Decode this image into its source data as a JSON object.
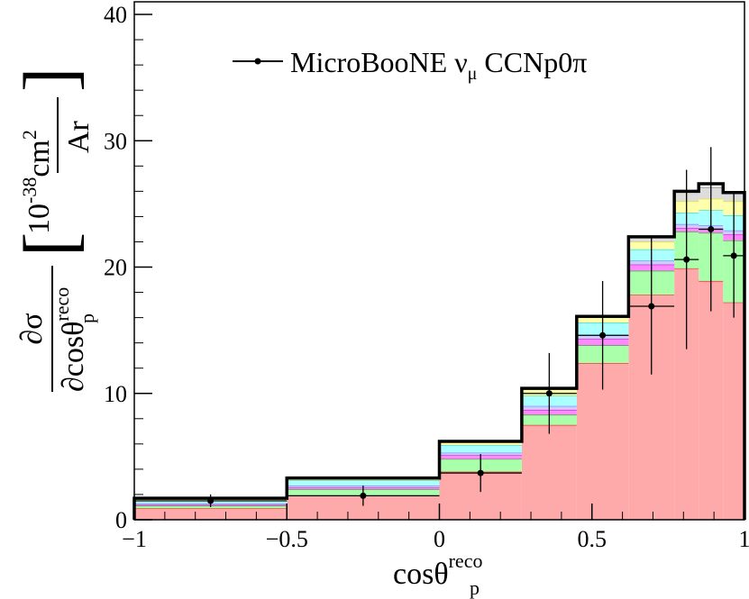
{
  "chart_data": {
    "type": "bar",
    "subtype": "stacked-histogram-with-data-points",
    "xlabel": "cosθ",
    "xlabel_sup": "reco",
    "xlabel_sub": "p",
    "ylabel": "∂σ / ∂cosθ_p^reco [10^-38 cm² / Ar]",
    "ylabel_parts": {
      "num": "∂σ",
      "den": "∂cosθ",
      "den_sup": "reco",
      "den_sub": "p",
      "unit_pre": "10",
      "unit_exp": "-38",
      "unit_num": "cm",
      "unit_num_exp": "2",
      "unit_den": "Ar",
      "bracket_open": "[",
      "bracket_close": "]"
    },
    "xlim": [
      -1,
      1
    ],
    "ylim": [
      0,
      41
    ],
    "x_ticks": [
      {
        "value": -1,
        "label": "−1"
      },
      {
        "value": -0.5,
        "label": "−0.5"
      },
      {
        "value": 0,
        "label": "0"
      },
      {
        "value": 0.5,
        "label": "0.5"
      },
      {
        "value": 1,
        "label": "1"
      }
    ],
    "y_ticks": [
      {
        "value": 0,
        "label": "0"
      },
      {
        "value": 10,
        "label": "10"
      },
      {
        "value": 20,
        "label": "20"
      },
      {
        "value": 30,
        "label": "30"
      },
      {
        "value": 40,
        "label": "40"
      }
    ],
    "bin_edges": [
      -1,
      -0.5,
      0,
      0.27,
      0.45,
      0.62,
      0.77,
      0.85,
      0.93,
      1.0
    ],
    "stack_series": [
      {
        "color": "#ffaaaa",
        "edge": "#ff0000",
        "values": [
          0.9,
          1.9,
          3.8,
          7.5,
          12.4,
          17.8,
          19.9,
          18.9,
          17.2
        ]
      },
      {
        "color": "#aaffaa",
        "edge": "#00aa00",
        "values": [
          0.2,
          0.5,
          1.0,
          0.8,
          1.4,
          1.9,
          2.9,
          3.8,
          4.9
        ]
      },
      {
        "color": "#ff88ff",
        "edge": "#cc00cc",
        "values": [
          0.1,
          0.15,
          0.3,
          0.4,
          0.5,
          0.5,
          0.3,
          0.3,
          0.5
        ]
      },
      {
        "color": "#ccccff",
        "edge": "#6666ff",
        "values": [
          0.1,
          0.15,
          0.2,
          0.3,
          0.3,
          0.3,
          0.3,
          0.3,
          0.3
        ]
      },
      {
        "color": "#aaffff",
        "edge": "#00cccc",
        "values": [
          0.2,
          0.4,
          0.6,
          0.8,
          1.0,
          0.9,
          0.9,
          1.2,
          1.2
        ]
      },
      {
        "color": "#ffffaa",
        "edge": "#dddd00",
        "values": [
          0.2,
          0.3,
          0.3,
          0.5,
          0.4,
          0.6,
          0.9,
          0.9,
          1.1
        ]
      },
      {
        "color": "#dddddd",
        "edge": "#999999",
        "values": [
          0.0,
          0.0,
          0.0,
          0.0,
          0.1,
          0.4,
          0.8,
          0.9,
          0.7
        ]
      }
    ],
    "total_values": [
      1.7,
      3.3,
      6.2,
      10.4,
      16.1,
      22.4,
      26.0,
      26.6,
      25.9
    ],
    "data_series": {
      "name": "MicroBooNE ν μ CCNp0π",
      "points": [
        {
          "x": -0.75,
          "y": 1.5,
          "xerr": 0.25,
          "yerr": 0.5
        },
        {
          "x": -0.25,
          "y": 1.9,
          "xerr": 0.25,
          "yerr": 0.8
        },
        {
          "x": 0.135,
          "y": 3.7,
          "xerr": 0.135,
          "yerr": 1.5
        },
        {
          "x": 0.36,
          "y": 10.0,
          "xerr": 0.09,
          "yerr": 3.2
        },
        {
          "x": 0.535,
          "y": 14.6,
          "xerr": 0.085,
          "yerr": 4.3
        },
        {
          "x": 0.695,
          "y": 16.9,
          "xerr": 0.075,
          "yerr": 5.4
        },
        {
          "x": 0.81,
          "y": 20.6,
          "xerr": 0.04,
          "yerr": 7.1
        },
        {
          "x": 0.89,
          "y": 23.0,
          "xerr": 0.04,
          "yerr": 6.5
        },
        {
          "x": 0.965,
          "y": 20.9,
          "xerr": 0.035,
          "yerr": 4.9
        }
      ]
    },
    "legend": {
      "entries": [
        {
          "label_main": "MicroBooNE ν",
          "label_sub": "μ",
          "label_tail": " CCNp0π"
        }
      ],
      "position": "top-right"
    },
    "grid": false
  }
}
